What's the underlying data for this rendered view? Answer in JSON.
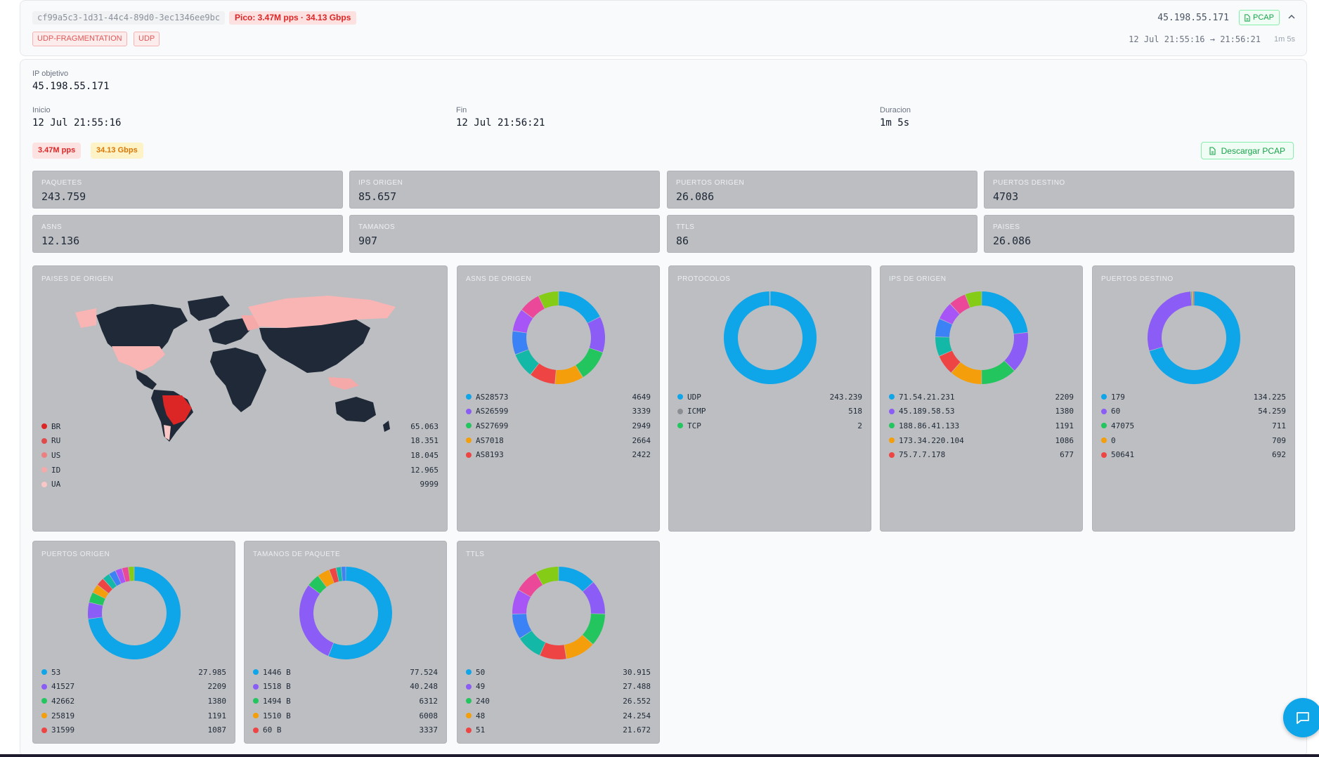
{
  "header": {
    "attack_id": "cf99a5c3-1d31-44c4-89d0-3ec1346ee9bc",
    "peak": "Pico: 3.47M pps · 34.13 Gbps",
    "tags": [
      "UDP-FRAGMENTATION",
      "UDP"
    ],
    "target_ip": "45.198.55.171",
    "pcap_label": "PCAP",
    "time_range": "12 Jul 21:55:16 → 21:56:21",
    "duration": "1m 5s"
  },
  "details": {
    "ip_label": "IP objetivo",
    "ip_value": "45.198.55.171",
    "start_label": "Inicio",
    "start_value": "12 Jul 21:55:16",
    "end_label": "Fin",
    "end_value": "12 Jul 21:56:21",
    "duration_label": "Duracion",
    "duration_value": "1m 5s",
    "pps": "3.47M pps",
    "gbps": "34.13 Gbps",
    "download_label": "Descargar PCAP"
  },
  "stats": [
    {
      "label": "PAQUETES",
      "value": "243.759"
    },
    {
      "label": "IPS ORIGEN",
      "value": "85.657"
    },
    {
      "label": "PUERTOS ORIGEN",
      "value": "26.086"
    },
    {
      "label": "PUERTOS DESTINO",
      "value": "4703"
    },
    {
      "label": "ASNS",
      "value": "12.136"
    },
    {
      "label": "TAMANOS",
      "value": "907"
    },
    {
      "label": "TTLS",
      "value": "86"
    },
    {
      "label": "PAISES",
      "value": "26.086"
    }
  ],
  "colors": [
    "#0ea5e9",
    "#8b5cf6",
    "#22c55e",
    "#f59e0b",
    "#ef4444",
    "#14b8a6",
    "#3b82f6",
    "#a855f7",
    "#ec4899",
    "#84cc16"
  ],
  "map_card": {
    "title": "PAISES DE ORIGEN",
    "legend": [
      {
        "name": "BR",
        "value": "65.063",
        "color": "#dc2626"
      },
      {
        "name": "RU",
        "value": "18.351",
        "color": "#e14a4a"
      },
      {
        "name": "US",
        "value": "18.045",
        "color": "#ec7f7f"
      },
      {
        "name": "ID",
        "value": "12.965",
        "color": "#f5a9a9"
      },
      {
        "name": "UA",
        "value": "9999",
        "color": "#fac7c7"
      }
    ]
  },
  "chart_data": [
    {
      "id": "asns",
      "type": "pie",
      "title": "ASNS DE ORIGEN",
      "categories": [
        "AS28573",
        "AS26599",
        "AS27699",
        "AS7018",
        "AS8193"
      ],
      "values": [
        4649,
        3339,
        2949,
        2664,
        2422
      ],
      "value_labels": [
        "4649",
        "3339",
        "2949",
        "2664",
        "2422"
      ],
      "slices": [
        4649,
        3339,
        2949,
        2664,
        2422,
        2300,
        2200,
        2100,
        2000,
        1900
      ]
    },
    {
      "id": "protocolos",
      "type": "pie",
      "title": "PROTOCOLOS",
      "categories": [
        "UDP",
        "ICMP",
        "TCP"
      ],
      "values": [
        243239,
        518,
        2
      ],
      "value_labels": [
        "243.239",
        "518",
        "2"
      ],
      "slices": [
        243239,
        518,
        2
      ],
      "slice_colors": [
        "#0ea5e9",
        "#8b8e93",
        "#22c55e"
      ]
    },
    {
      "id": "ips",
      "type": "pie",
      "title": "IPS DE ORIGEN",
      "categories": [
        "71.54.21.231",
        "45.189.58.53",
        "188.86.41.133",
        "173.34.220.104",
        "75.7.7.178"
      ],
      "values": [
        2209,
        1380,
        1191,
        1086,
        677
      ],
      "value_labels": [
        "2209",
        "1380",
        "1191",
        "1086",
        "677"
      ],
      "slices": [
        2209,
        1380,
        1191,
        1086,
        677,
        650,
        620,
        600,
        580,
        560
      ]
    },
    {
      "id": "puertos-destino",
      "type": "pie",
      "title": "PUERTOS DESTINO",
      "categories": [
        "179",
        "60",
        "47075",
        "0",
        "50641"
      ],
      "values": [
        134225,
        54259,
        711,
        709,
        692
      ],
      "value_labels": [
        "134.225",
        "54.259",
        "711",
        "709",
        "692"
      ],
      "slices": [
        134225,
        54259,
        711,
        709,
        692
      ]
    },
    {
      "id": "puertos-origen",
      "type": "pie",
      "title": "PUERTOS ORIGEN",
      "categories": [
        "53",
        "41527",
        "42662",
        "25819",
        "31599"
      ],
      "values": [
        27985,
        2209,
        1380,
        1191,
        1087
      ],
      "value_labels": [
        "27.985",
        "2209",
        "1380",
        "1191",
        "1087"
      ],
      "slices": [
        27985,
        2209,
        1380,
        1191,
        1087,
        1000,
        950,
        900,
        850,
        800
      ]
    },
    {
      "id": "tamanos",
      "type": "pie",
      "title": "TAMANOS DE PAQUETE",
      "categories": [
        "1446 B",
        "1518 B",
        "1494 B",
        "1510 B",
        "60 B"
      ],
      "values": [
        77524,
        40248,
        6312,
        6008,
        3337
      ],
      "value_labels": [
        "77.524",
        "40.248",
        "6312",
        "6008",
        "3337"
      ],
      "slices": [
        77524,
        40248,
        6312,
        6008,
        3337,
        2500,
        2200
      ]
    },
    {
      "id": "ttls",
      "type": "pie",
      "title": "TTLS",
      "categories": [
        "50",
        "49",
        "240",
        "48",
        "51"
      ],
      "values": [
        30915,
        27488,
        26552,
        24254,
        21672
      ],
      "value_labels": [
        "30.915",
        "27.488",
        "26.552",
        "24.254",
        "21.672"
      ],
      "slices": [
        30915,
        27488,
        26552,
        24254,
        21672,
        21000,
        20500,
        20000,
        19500,
        19000
      ]
    }
  ]
}
